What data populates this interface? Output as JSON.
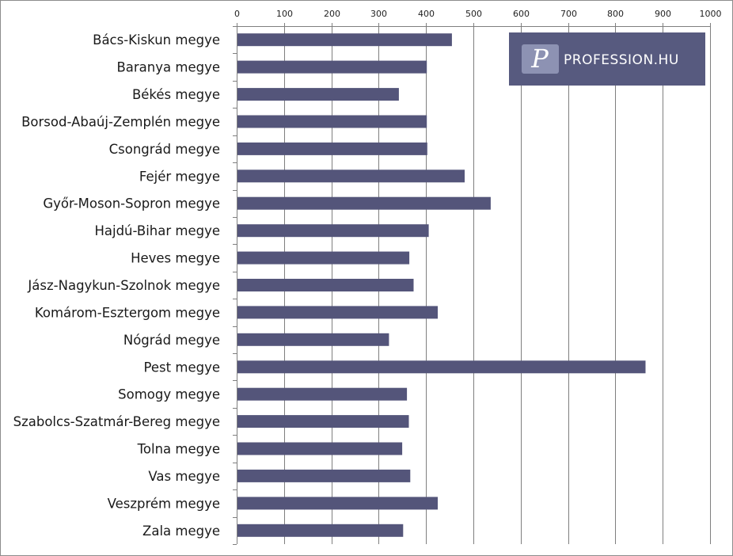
{
  "chart_data": {
    "type": "bar",
    "orientation": "horizontal",
    "categories": [
      "Bács-Kiskun megye",
      "Baranya megye",
      "Békés megye",
      "Borsod-Abaúj-Zemplén megye",
      "Csongrád megye",
      "Fejér megye",
      "Győr-Moson-Sopron megye",
      "Hajdú-Bihar megye",
      "Heves megye",
      "Jász-Nagykun-Szolnok megye",
      "Komárom-Esztergom megye",
      "Nógrád megye",
      "Pest megye",
      "Somogy megye",
      "Szabolcs-Szatmár-Bereg megye",
      "Tolna megye",
      "Vas megye",
      "Veszprém megye",
      "Zala megye"
    ],
    "values": [
      453,
      400,
      341,
      400,
      401,
      480,
      535,
      404,
      363,
      372,
      423,
      320,
      862,
      358,
      362,
      348,
      365,
      423,
      350
    ],
    "xlim": [
      0,
      1000
    ],
    "xticks": [
      "0",
      "100",
      "200",
      "300",
      "400",
      "500",
      "600",
      "700",
      "800",
      "900",
      "1000"
    ],
    "x_axis_position": "top",
    "grid": true,
    "legend": "none",
    "bar_color": "#54557a",
    "grid_color": "#7f7f7f"
  },
  "logo": {
    "text": "PROFESSION.HU",
    "glyph": "P",
    "background": "#575a7f",
    "badge_color": "#8d92b3"
  }
}
